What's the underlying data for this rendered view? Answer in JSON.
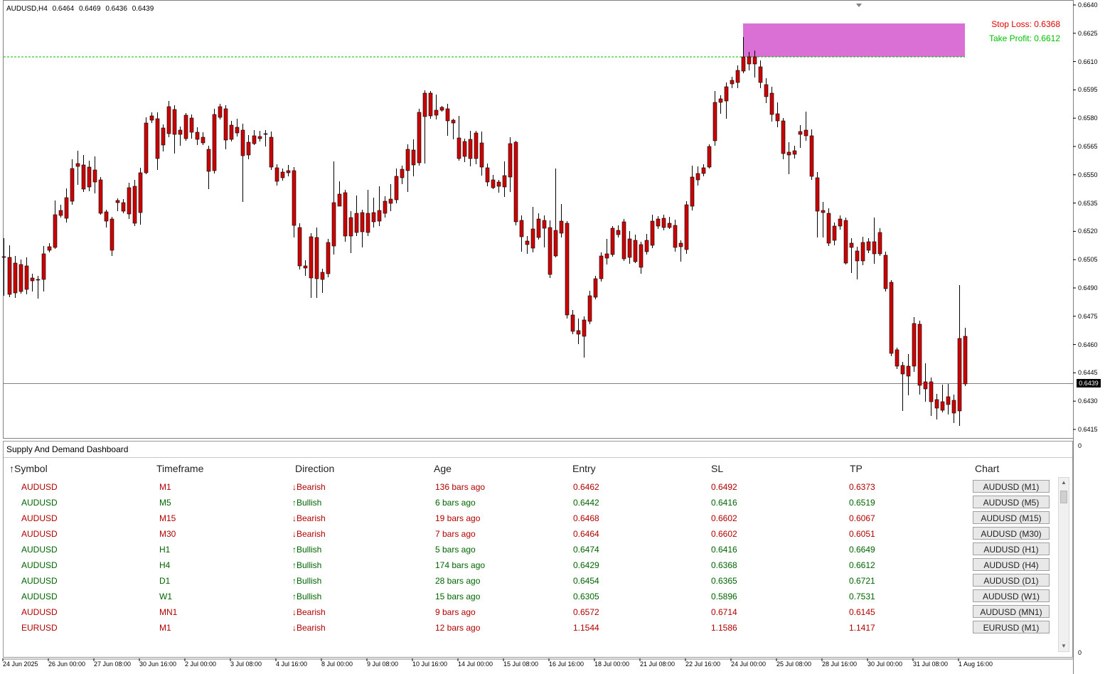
{
  "chart": {
    "symbol": "AUDUSD,H4",
    "ohlc": [
      "0.6464",
      "0.6469",
      "0.6436",
      "0.6439"
    ],
    "stop_loss": "Stop Loss: 0.6368",
    "take_profit": "Take Profit: 0.6612",
    "current_price": "0.6439",
    "price_axis": [
      "0.6640",
      "0.6625",
      "0.6610",
      "0.6595",
      "0.6580",
      "0.6565",
      "0.6550",
      "0.6535",
      "0.6520",
      "0.6505",
      "0.6490",
      "0.6475",
      "0.6460",
      "0.6445",
      "0.6430",
      "0.6415"
    ],
    "time_axis": [
      "24 Jun 2025",
      "26 Jun 00:00",
      "27 Jun 08:00",
      "30 Jun 16:00",
      "2 Jul 00:00",
      "3 Jul 08:00",
      "4 Jul 16:00",
      "8 Jul 00:00",
      "9 Jul 08:00",
      "10 Jul 16:00",
      "14 Jul 00:00",
      "15 Jul 08:00",
      "16 Jul 16:00",
      "18 Jul 00:00",
      "21 Jul 08:00",
      "22 Jul 16:00",
      "24 Jul 00:00",
      "25 Jul 08:00",
      "28 Jul 16:00",
      "30 Jul 00:00",
      "31 Jul 08:00",
      "1 Aug 16:00"
    ],
    "zero_labels": [
      "0",
      "0"
    ],
    "colors": {
      "bull": "#00cc00",
      "bear": "#cc0000",
      "zone": "#da70d6",
      "tp_line": "#00c000"
    }
  },
  "dashboard": {
    "title": "Supply And Demand Dashboard",
    "sort_icon": "↑",
    "headers": [
      "Symbol",
      "Timeframe",
      "Direction",
      "Age",
      "Entry",
      "SL",
      "TP",
      "Chart"
    ],
    "rows": [
      {
        "symbol": "AUDUSD",
        "tf": "M1",
        "dir": "Bearish",
        "arrow": "🡓",
        "age": "136 bars ago",
        "entry": "0.6462",
        "sl": "0.6492",
        "tp": "0.6373",
        "chart": "AUDUSD (M1)",
        "bull": false
      },
      {
        "symbol": "AUDUSD",
        "tf": "M5",
        "dir": "Bullish",
        "arrow": "🡑",
        "age": "6 bars ago",
        "entry": "0.6442",
        "sl": "0.6416",
        "tp": "0.6519",
        "chart": "AUDUSD (M5)",
        "bull": true
      },
      {
        "symbol": "AUDUSD",
        "tf": "M15",
        "dir": "Bearish",
        "arrow": "🡓",
        "age": "19 bars ago",
        "entry": "0.6468",
        "sl": "0.6602",
        "tp": "0.6067",
        "chart": "AUDUSD (M15)",
        "bull": false
      },
      {
        "symbol": "AUDUSD",
        "tf": "M30",
        "dir": "Bearish",
        "arrow": "🡓",
        "age": "7 bars ago",
        "entry": "0.6464",
        "sl": "0.6602",
        "tp": "0.6051",
        "chart": "AUDUSD (M30)",
        "bull": false
      },
      {
        "symbol": "AUDUSD",
        "tf": "H1",
        "dir": "Bullish",
        "arrow": "🡑",
        "age": "5 bars ago",
        "entry": "0.6474",
        "sl": "0.6416",
        "tp": "0.6649",
        "chart": "AUDUSD (H1)",
        "bull": true
      },
      {
        "symbol": "AUDUSD",
        "tf": "H4",
        "dir": "Bullish",
        "arrow": "🡑",
        "age": "174 bars ago",
        "entry": "0.6429",
        "sl": "0.6368",
        "tp": "0.6612",
        "chart": "AUDUSD (H4)",
        "bull": true
      },
      {
        "symbol": "AUDUSD",
        "tf": "D1",
        "dir": "Bullish",
        "arrow": "🡑",
        "age": "28 bars ago",
        "entry": "0.6454",
        "sl": "0.6365",
        "tp": "0.6721",
        "chart": "AUDUSD (D1)",
        "bull": true
      },
      {
        "symbol": "AUDUSD",
        "tf": "W1",
        "dir": "Bullish",
        "arrow": "🡑",
        "age": "15 bars ago",
        "entry": "0.6305",
        "sl": "0.5896",
        "tp": "0.7531",
        "chart": "AUDUSD (W1)",
        "bull": true
      },
      {
        "symbol": "AUDUSD",
        "tf": "MN1",
        "dir": "Bearish",
        "arrow": "🡓",
        "age": "9 bars ago",
        "entry": "0.6572",
        "sl": "0.6714",
        "tp": "0.6145",
        "chart": "AUDUSD (MN1)",
        "bull": false
      },
      {
        "symbol": "EURUSD",
        "tf": "M1",
        "dir": "Bearish",
        "arrow": "🡓",
        "age": "12 bars ago",
        "entry": "1.1544",
        "sl": "1.1586",
        "tp": "1.1417",
        "chart": "EURUSD (M1)",
        "bull": false
      }
    ]
  }
}
